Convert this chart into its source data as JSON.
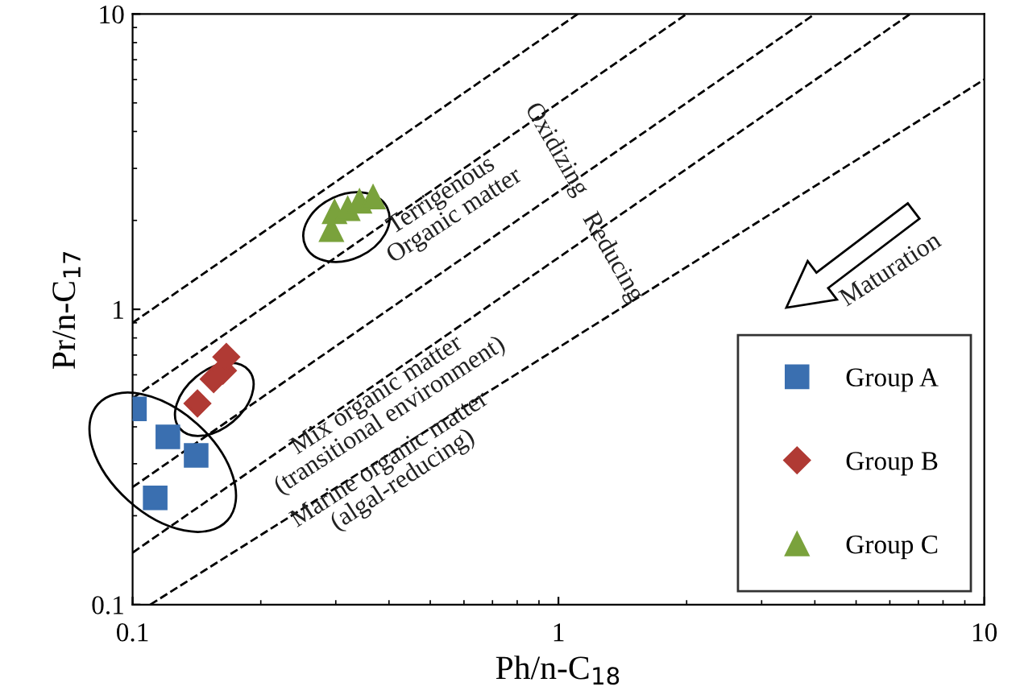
{
  "chart_data": {
    "type": "scatter",
    "xlabel": "Ph/n-C$_{18}$",
    "ylabel": "Pr/n-C$_{17}$",
    "xlim": [
      0.1,
      10
    ],
    "ylim": [
      0.1,
      10
    ],
    "xticks": [
      0.1,
      1,
      10
    ],
    "yticks": [
      0.1,
      1,
      10
    ],
    "log": "xy",
    "grid": false,
    "legend": "bottom right",
    "series": [
      {
        "name": "Group A",
        "color": "#3a6fb0",
        "marker": "square",
        "x": [
          0.101,
          0.121,
          0.141,
          0.113
        ],
        "values": [
          0.46,
          0.37,
          0.32,
          0.23
        ]
      },
      {
        "name": "Group B",
        "color": "#b03a34",
        "marker": "diamond",
        "x": [
          0.142,
          0.155,
          0.163,
          0.166
        ],
        "values": [
          0.48,
          0.58,
          0.62,
          0.69
        ]
      },
      {
        "name": "Group C",
        "color": "#7aa23c",
        "marker": "triangle",
        "x": [
          0.293,
          0.298,
          0.32,
          0.341,
          0.367
        ],
        "values": [
          1.86,
          2.14,
          2.19,
          2.32,
          2.4
        ]
      },
      {
        "type": "line",
        "color": "#000000",
        "line_style": "dashed",
        "marker": "none",
        "x": [
          0.1,
          1.11
        ],
        "values": [
          0.9,
          10
        ]
      },
      {
        "type": "line",
        "color": "#000000",
        "line_style": "dashed",
        "marker": "none",
        "x": [
          0.1,
          2
        ],
        "values": [
          0.5,
          10
        ]
      },
      {
        "type": "line",
        "color": "#000000",
        "line_style": "dashed",
        "marker": "none",
        "x": [
          0.1,
          4
        ],
        "values": [
          0.25,
          10
        ]
      },
      {
        "type": "line",
        "color": "#000000",
        "line_style": "dashed",
        "marker": "none",
        "x": [
          0.1,
          6.7
        ],
        "values": [
          0.15,
          10
        ]
      },
      {
        "type": "line",
        "color": "#000000",
        "line_style": "dashed",
        "marker": "none",
        "x": [
          0.11,
          10
        ],
        "values": [
          0.1,
          6
        ]
      }
    ],
    "annotations": [
      "Terrigenous\nOrganic matter",
      "Mix organic matter\n(transitional environment)",
      "Marine organic matter\n(algal-reducing)",
      "Oxidizing",
      "Reducing",
      "Maturation"
    ]
  }
}
